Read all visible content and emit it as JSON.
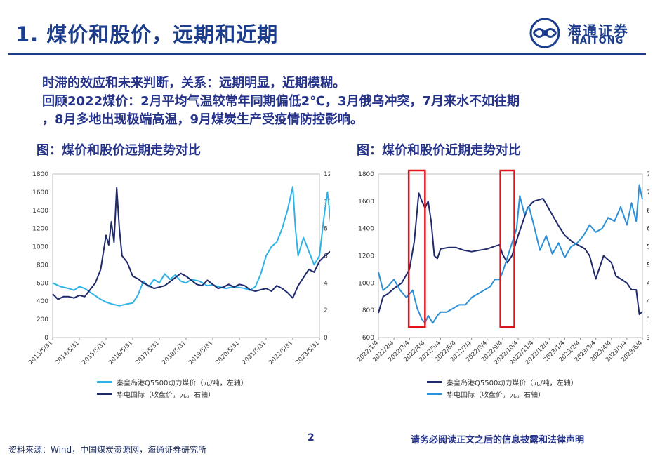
{
  "header": {
    "title": "1. 煤价和股价，远期和近期",
    "logo_cn": "海通证券",
    "logo_en": "HAITONG"
  },
  "body": {
    "line1": "时滞的效应和未来判断，关系：远期明显，近期模糊。",
    "line2": "回顾2022煤价：2月平均气温较常年同期偏低2℃，3月俄乌冲突，7月来水不如往期",
    "line3": "，8月多地出现极端高温，9月煤炭生产受疫情防控影响。"
  },
  "figures": {
    "left_title": "图：煤价和股价远期走势对比",
    "right_title": "图：煤价和股价近期走势对比"
  },
  "chart_data": [
    {
      "type": "line",
      "x_labels": [
        "2013/5/31",
        "2014/5/31",
        "2015/5/31",
        "2016/5/31",
        "2017/5/31",
        "2018/5/31",
        "2019/5/31",
        "2020/5/31",
        "2021/5/31",
        "2022/5/31",
        "2023/5/31"
      ],
      "y_left_ticks": [
        "0",
        "200",
        "400",
        "600",
        "800",
        "1000",
        "1200",
        "1400",
        "1600",
        "1800"
      ],
      "y_right_ticks": [
        "0",
        "2",
        "4",
        "6",
        "8",
        "10",
        "12"
      ],
      "ylim_left": [
        0,
        1800
      ],
      "ylim_right": [
        0,
        12
      ],
      "series": [
        {
          "name": "秦皇岛港Q5500动力煤价（元/吨，左轴）",
          "axis": "left",
          "color": "#2eb3e6",
          "x": [
            0,
            0.3,
            0.6,
            0.8,
            1.0,
            1.2,
            1.5,
            1.8,
            2.0,
            2.2,
            2.5,
            2.8,
            3.0,
            3.2,
            3.4,
            3.6,
            3.8,
            4.0,
            4.2,
            4.4,
            4.6,
            4.8,
            5.0,
            5.2,
            5.5,
            5.8,
            6.0,
            6.2,
            6.5,
            6.8,
            7.0,
            7.2,
            7.4,
            7.6,
            7.8,
            8.0,
            8.2,
            8.4,
            8.6,
            8.8,
            9.0,
            9.1,
            9.2,
            9.4,
            9.6,
            9.8,
            10.0,
            10.2,
            10.3,
            10.5,
            10.7,
            11.0
          ],
          "values": [
            600,
            560,
            540,
            520,
            560,
            540,
            480,
            420,
            390,
            370,
            350,
            370,
            380,
            470,
            620,
            560,
            640,
            600,
            700,
            640,
            690,
            620,
            600,
            640,
            620,
            570,
            580,
            560,
            540,
            560,
            550,
            540,
            520,
            560,
            700,
            900,
            1000,
            1050,
            1200,
            1400,
            1660,
            1200,
            900,
            1100,
            950,
            800,
            900,
            1400,
            1600,
            1050,
            700,
            780
          ]
        },
        {
          "name": "华电国际（收盘价，元，右轴）",
          "axis": "right",
          "color": "#1f2a6b",
          "x": [
            0,
            0.2,
            0.4,
            0.6,
            0.8,
            1.0,
            1.2,
            1.4,
            1.6,
            1.8,
            2.0,
            2.1,
            2.2,
            2.3,
            2.4,
            2.5,
            2.6,
            2.8,
            3.0,
            3.2,
            3.4,
            3.6,
            3.8,
            4.0,
            4.2,
            4.4,
            4.6,
            4.8,
            5.0,
            5.2,
            5.4,
            5.6,
            5.8,
            6.0,
            6.2,
            6.4,
            6.6,
            6.8,
            7.0,
            7.2,
            7.4,
            7.6,
            7.8,
            8.0,
            8.2,
            8.4,
            8.6,
            8.8,
            9.0,
            9.2,
            9.4,
            9.6,
            9.8,
            10.0,
            10.2,
            10.4,
            10.6,
            10.8,
            11.0
          ],
          "values": [
            3.2,
            2.8,
            3.0,
            3.0,
            2.9,
            3.1,
            3.0,
            3.5,
            4.0,
            5.0,
            7.5,
            6.8,
            8.5,
            7.0,
            11.0,
            8.0,
            6.0,
            5.5,
            4.5,
            4.3,
            4.0,
            3.8,
            3.6,
            3.7,
            3.8,
            4.1,
            4.4,
            4.7,
            4.5,
            4.2,
            3.9,
            3.8,
            4.2,
            3.9,
            3.6,
            3.7,
            3.9,
            3.7,
            3.9,
            3.8,
            3.5,
            3.4,
            3.5,
            3.6,
            3.4,
            3.8,
            3.6,
            3.3,
            2.9,
            3.8,
            4.4,
            5.0,
            4.8,
            5.6,
            6.0,
            6.3,
            6.0,
            6.5,
            7.2
          ]
        }
      ]
    },
    {
      "type": "line",
      "x_labels": [
        "2022/1/4",
        "2022/2/4",
        "2022/3/4",
        "2022/4/4",
        "2022/5/4",
        "2022/6/4",
        "2022/7/4",
        "2022/8/4",
        "2022/9/4",
        "2022/10/4",
        "2022/11/4",
        "2022/12/4",
        "2023/1/4",
        "2023/2/4",
        "2023/3/4",
        "2023/4/4",
        "2023/5/4",
        "2023/6/4"
      ],
      "y_left_ticks": [
        "600",
        "800",
        "1000",
        "1200",
        "1400",
        "1600",
        "1800"
      ],
      "y_right_ticks": [
        "3",
        "3.5",
        "4",
        "4.5",
        "5",
        "5.5",
        "6",
        "6.5",
        "7",
        "7.5"
      ],
      "ylim_left": [
        600,
        1800
      ],
      "ylim_right": [
        3,
        7.5
      ],
      "series": [
        {
          "name": "秦皇岛港Q5500动力煤价（元/吨，左轴）",
          "axis": "left",
          "color": "#1f2a6b",
          "x": [
            0,
            0.3,
            0.6,
            1.0,
            1.5,
            2.0,
            2.3,
            2.6,
            2.8,
            3.0,
            3.2,
            3.4,
            3.6,
            3.8,
            4.0,
            4.5,
            5.0,
            5.5,
            6.0,
            6.5,
            7.0,
            7.5,
            7.8,
            8.0,
            8.3,
            8.6,
            9.0,
            9.3,
            9.6,
            10.0,
            10.3,
            10.6,
            10.9,
            11.2,
            11.6,
            12.0,
            12.5,
            13.0,
            13.3,
            13.6,
            14.0,
            14.5,
            15.0,
            15.3,
            15.6,
            16.0,
            16.3,
            16.6,
            16.8,
            17.0
          ],
          "values": [
            780,
            900,
            920,
            960,
            1000,
            1100,
            1300,
            1660,
            1600,
            1550,
            1600,
            1450,
            1200,
            1180,
            1250,
            1260,
            1260,
            1240,
            1230,
            1240,
            1250,
            1270,
            1280,
            1210,
            1150,
            1200,
            1350,
            1450,
            1550,
            1600,
            1610,
            1620,
            1560,
            1500,
            1420,
            1350,
            1300,
            1270,
            1250,
            1200,
            1030,
            1200,
            1150,
            1050,
            1030,
            1000,
            950,
            950,
            770,
            790
          ]
        },
        {
          "name": "华电国际（收盘价，元，右轴）",
          "axis": "right",
          "color": "#2e90d6",
          "x": [
            0,
            0.3,
            0.6,
            1.0,
            1.4,
            1.8,
            2.2,
            2.5,
            2.8,
            3.0,
            3.2,
            3.5,
            3.8,
            4.0,
            4.4,
            4.8,
            5.2,
            5.6,
            6.0,
            6.4,
            6.8,
            7.2,
            7.5,
            7.8,
            8.0,
            8.3,
            8.6,
            8.9,
            9.1,
            9.4,
            9.7,
            10.0,
            10.4,
            10.8,
            11.2,
            11.6,
            12.0,
            12.4,
            12.8,
            13.2,
            13.6,
            14.0,
            14.4,
            14.8,
            15.2,
            15.6,
            16.0,
            16.3,
            16.6,
            16.8,
            17.0
          ],
          "values": [
            4.8,
            4.3,
            4.4,
            4.6,
            4.3,
            4.1,
            4.3,
            3.8,
            3.5,
            3.4,
            3.6,
            3.4,
            3.6,
            3.7,
            3.7,
            3.8,
            3.9,
            3.9,
            4.1,
            4.2,
            4.3,
            4.4,
            4.6,
            4.6,
            4.8,
            5.2,
            5.6,
            6.0,
            6.9,
            6.4,
            6.6,
            6.1,
            5.4,
            5.8,
            5.3,
            5.6,
            5.2,
            5.5,
            5.6,
            5.8,
            6.1,
            5.9,
            6.0,
            6.3,
            6.2,
            6.6,
            6.1,
            6.7,
            6.2,
            7.2,
            6.8
          ]
        }
      ],
      "annotations": [
        "red box around 2022/3-4",
        "red box around 2022/8-9"
      ]
    }
  ],
  "footer": {
    "source": "资料来源：Wind，中国煤炭资源网，海通证券研究所",
    "page": "2",
    "disclaimer": "请务必阅读正文之后的信息披露和法律声明"
  }
}
